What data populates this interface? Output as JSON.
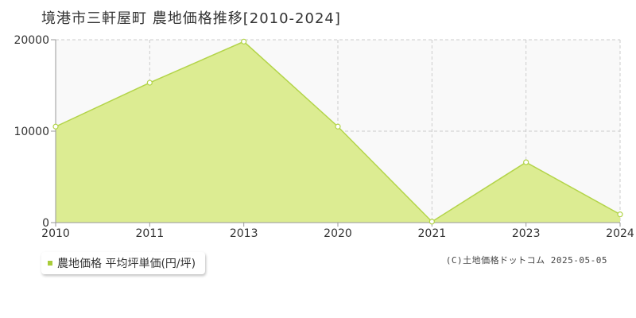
{
  "colors": {
    "area_fill": "#dcec92",
    "line": "#b3d44a",
    "point_fill": "#ffffff",
    "grid": "#cccccc",
    "plot_bg": "#f9f9f9",
    "legend_marker": "#a9cc3a"
  },
  "chart_data": {
    "type": "area",
    "title": "境港市三軒屋町 農地価格推移[2010-2024]",
    "categories": [
      "2010",
      "2011",
      "2013",
      "2020",
      "2021",
      "2023",
      "2024"
    ],
    "series": [
      {
        "name": "農地価格 平均坪単価(円/坪)",
        "values": [
          10500,
          15300,
          19800,
          10500,
          100,
          6600,
          900
        ]
      }
    ],
    "y_ticks": [
      "0",
      "10000",
      "20000"
    ],
    "ylim": [
      0,
      20000
    ],
    "grid": true,
    "legend_position": "bottom-left"
  },
  "legend": {
    "label": "農地価格 平均坪単価(円/坪)"
  },
  "footer": {
    "copyright": "(C)土地価格ドットコム 2025-05-05"
  }
}
